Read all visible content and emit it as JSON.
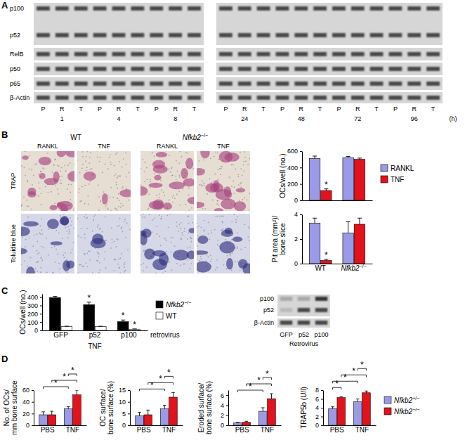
{
  "panel_labels": [
    "A",
    "B",
    "C",
    "D"
  ],
  "blot_a": {
    "rows": [
      "p100",
      "p52",
      "RelB",
      "p50",
      "p65",
      "β-Actin"
    ],
    "lanes": [
      "P",
      "R",
      "T"
    ],
    "times_left": [
      1,
      4,
      8
    ],
    "times_right": [
      24,
      48,
      72,
      96
    ],
    "time_unit": "(h)"
  },
  "panel_b": {
    "genotypes": [
      "WT",
      "Nfkb2−/−"
    ],
    "treatments": [
      "RANKL",
      "TNF"
    ],
    "stains": [
      "TRAP",
      "Toluidine blue"
    ]
  },
  "blot_c": {
    "rows": [
      "p100",
      "p52",
      "β-Actin"
    ],
    "lanes": [
      "GFP",
      "p52",
      "p100"
    ],
    "caption": "Retrovirus"
  },
  "chart_data": [
    {
      "type": "bar",
      "ylabel": "OCs/well (no.)",
      "categories": [
        "WT",
        "Nfkb2−/−"
      ],
      "series": [
        {
          "name": "RANKL",
          "color": "#9a9ae6",
          "values": [
            510,
            520
          ],
          "errors": [
            30,
            15
          ]
        },
        {
          "name": "TNF",
          "color": "#e3121b",
          "values": [
            120,
            500
          ],
          "errors": [
            20,
            15
          ]
        }
      ],
      "ylim": [
        0,
        600
      ],
      "yticks": [
        0,
        200,
        400,
        600
      ],
      "tick_labels": "y",
      "legend": "right",
      "annotations": [
        {
          "at": [
            0,
            1
          ],
          "label": "*"
        }
      ]
    },
    {
      "type": "bar",
      "ylabel": [
        "Pit area (mm²)/",
        "bone slice"
      ],
      "categories": [
        "WT",
        "Nfkb2−/−"
      ],
      "series": [
        {
          "color": "#9a9ae6",
          "values": [
            3.3,
            2.5
          ],
          "errors": [
            0.4,
            0.9
          ]
        },
        {
          "color": "#e3121b",
          "values": [
            0.25,
            3.2
          ],
          "errors": [
            0.1,
            0.5
          ]
        }
      ],
      "ylim": [
        0,
        4
      ],
      "yticks": [
        0,
        2,
        4
      ],
      "annotations": [
        {
          "at": [
            0,
            1
          ],
          "label": "*"
        }
      ]
    },
    {
      "type": "bar",
      "ylabel": "OCs/well (no.)",
      "xlabel": "TNF",
      "categories": [
        "GFP",
        "p52",
        "p100"
      ],
      "series": [
        {
          "name": "Nfkb2−/−",
          "color": "#000000",
          "values": [
            395,
            310,
            105
          ],
          "errors": [
            15,
            30,
            20
          ]
        },
        {
          "name": "WT",
          "color": "#ffffff",
          "values": [
            45,
            45,
            15
          ],
          "errors": [
            6,
            5,
            3
          ]
        }
      ],
      "ylim": [
        0,
        440
      ],
      "yticks": [
        0,
        100,
        200,
        300,
        400
      ],
      "legend": "right",
      "annotations": [
        {
          "at": [
            1,
            0
          ],
          "label": "*"
        },
        {
          "at": [
            2,
            0
          ],
          "label": "*"
        },
        {
          "at": [
            2,
            1
          ],
          "label": "*"
        },
        {
          "label": "retrovirus"
        }
      ]
    },
    {
      "type": "bar",
      "ylabel": [
        "No. of OCs/",
        "mm bone surface"
      ],
      "categories": [
        "PBS",
        "TNF"
      ],
      "series": [
        {
          "color": "#9a9ae6",
          "values": [
            18,
            28
          ],
          "errors": [
            5,
            4
          ]
        },
        {
          "color": "#e3121b",
          "values": [
            18,
            52
          ],
          "errors": [
            6,
            8
          ]
        }
      ],
      "ylim": [
        0,
        60
      ],
      "yticks": [
        0,
        20,
        40,
        60
      ],
      "annotations": [
        {
          "between": [
            [
              0,
              0
            ],
            [
              1,
              0
            ]
          ],
          "label": "*"
        },
        {
          "between": [
            [
              0,
              1
            ],
            [
              1,
              1
            ]
          ],
          "label": "*"
        },
        {
          "between": [
            [
              1,
              0
            ],
            [
              1,
              1
            ]
          ],
          "label": "*"
        }
      ]
    },
    {
      "type": "bar",
      "ylabel": [
        "OC surface/",
        "bone surface (%)"
      ],
      "categories": [
        "PBS",
        "TNF"
      ],
      "series": [
        {
          "color": "#9a9ae6",
          "values": [
            4,
            7
          ],
          "errors": [
            1.5,
            1.5
          ]
        },
        {
          "color": "#e3121b",
          "values": [
            4.5,
            12
          ],
          "errors": [
            2,
            2
          ]
        }
      ],
      "ylim": [
        0,
        15
      ],
      "yticks": [
        0,
        5,
        10,
        15
      ],
      "annotations": [
        {
          "between": [
            [
              0,
              0
            ],
            [
              1,
              0
            ]
          ],
          "label": "*"
        },
        {
          "between": [
            [
              0,
              1
            ],
            [
              1,
              1
            ]
          ],
          "label": "*"
        },
        {
          "between": [
            [
              1,
              0
            ],
            [
              1,
              1
            ]
          ],
          "label": "*"
        }
      ]
    },
    {
      "type": "bar",
      "ylabel": [
        "Eroded surface/",
        "bone surface (%)"
      ],
      "categories": [
        "PBS",
        "TNF"
      ],
      "series": [
        {
          "color": "#9a9ae6",
          "values": [
            0.5,
            2.8
          ],
          "errors": [
            0.1,
            0.7
          ]
        },
        {
          "color": "#e3121b",
          "values": [
            0.6,
            5.3
          ],
          "errors": [
            0.2,
            1.0
          ]
        }
      ],
      "ylim": [
        0,
        7
      ],
      "yticks": [
        0,
        2,
        4,
        6
      ],
      "annotations": [
        {
          "between": [
            [
              0,
              0
            ],
            [
              1,
              0
            ]
          ],
          "label": "*"
        },
        {
          "between": [
            [
              0,
              1
            ],
            [
              1,
              1
            ]
          ],
          "label": "*"
        },
        {
          "between": [
            [
              1,
              0
            ],
            [
              1,
              1
            ]
          ],
          "label": "*"
        }
      ]
    },
    {
      "type": "bar",
      "ylabel": "TRAP5b (U/l)",
      "categories": [
        "PBS",
        "TNF"
      ],
      "series": [
        {
          "name": "Nfkb2+/−",
          "color": "#9a9ae6",
          "values": [
            3.8,
            5.4
          ],
          "errors": [
            0.4,
            0.6
          ]
        },
        {
          "name": "Nfkb2−/−",
          "color": "#e3121b",
          "values": [
            6.3,
            7.4
          ],
          "errors": [
            0.2,
            0.4
          ]
        }
      ],
      "ylim": [
        0,
        8
      ],
      "yticks": [
        0,
        2,
        4,
        6,
        8
      ],
      "legend": "right",
      "annotations": [
        {
          "between": [
            [
              0,
              0
            ],
            [
              0,
              1
            ]
          ],
          "label": "*"
        },
        {
          "between": [
            [
              0,
              0
            ],
            [
              1,
              0
            ]
          ],
          "label": "*"
        },
        {
          "between": [
            [
              0,
              1
            ],
            [
              1,
              1
            ]
          ],
          "label": "*"
        },
        {
          "between": [
            [
              1,
              0
            ],
            [
              1,
              1
            ]
          ],
          "label": "*"
        }
      ]
    }
  ]
}
